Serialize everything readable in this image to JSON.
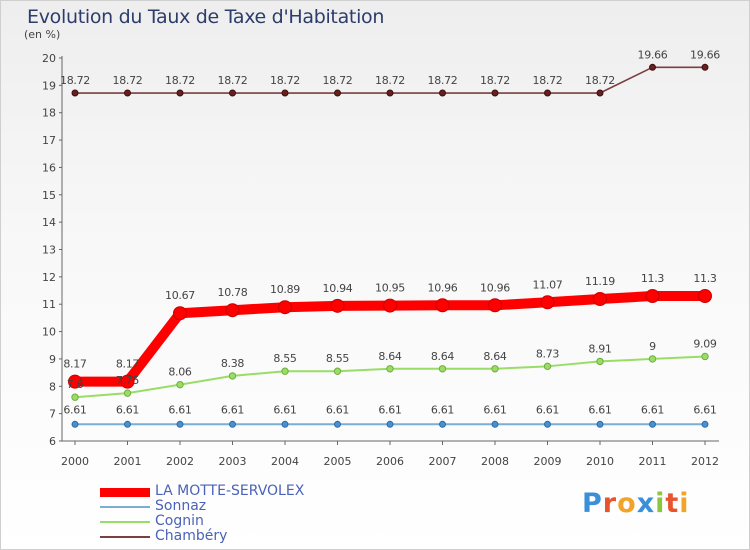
{
  "title": "Evolution du Taux de Taxe d'Habitation",
  "unit": "(en %)",
  "logo": {
    "text": "Proxiti",
    "letters": [
      {
        "ch": "P",
        "color": "#3a8fd8"
      },
      {
        "ch": "r",
        "color": "#e8542b"
      },
      {
        "ch": "o",
        "color": "#f2a32a"
      },
      {
        "ch": "x",
        "color": "#3a8fd8"
      },
      {
        "ch": "i",
        "color": "#8cc63e"
      },
      {
        "ch": "t",
        "color": "#e8542b"
      },
      {
        "ch": "i",
        "color": "#f2a32a"
      }
    ]
  },
  "chart_data": {
    "type": "line",
    "title": "Evolution du Taux de Taxe d'Habitation",
    "ylabel": "(en %)",
    "xlabel": "",
    "ylim": [
      6,
      20
    ],
    "yticks": [
      6,
      7,
      8,
      9,
      10,
      11,
      12,
      13,
      14,
      15,
      16,
      17,
      18,
      19,
      20
    ],
    "categories": [
      "2000",
      "2001",
      "2002",
      "2003",
      "2004",
      "2005",
      "2006",
      "2007",
      "2008",
      "2009",
      "2010",
      "2011",
      "2012"
    ],
    "grid": false,
    "legend_position": "bottom-left",
    "series": [
      {
        "name": "LA MOTTE-SERVOLEX",
        "color": "#ff0000",
        "labels": [
          "8.17",
          "8.17",
          "10.67",
          "10.78",
          "10.89",
          "10.94",
          "10.95",
          "10.96",
          "10.96",
          "11.07",
          "11.19",
          "11.3",
          "11.3"
        ],
        "values": [
          8.17,
          8.17,
          10.67,
          10.78,
          10.89,
          10.94,
          10.95,
          10.96,
          10.96,
          11.07,
          11.19,
          11.3,
          11.3
        ]
      },
      {
        "name": "Sonnaz",
        "color": "#7aaed6",
        "labels": [
          "6.61",
          "6.61",
          "6.61",
          "6.61",
          "6.61",
          "6.61",
          "6.61",
          "6.61",
          "6.61",
          "6.61",
          "6.61",
          "6.61",
          "6.61"
        ],
        "values": [
          6.61,
          6.61,
          6.61,
          6.61,
          6.61,
          6.61,
          6.61,
          6.61,
          6.61,
          6.61,
          6.61,
          6.61,
          6.61
        ]
      },
      {
        "name": "Cognin",
        "color": "#99dd66",
        "labels": [
          "7.6",
          "7.75",
          "8.06",
          "8.38",
          "8.55",
          "8.55",
          "8.64",
          "8.64",
          "8.64",
          "8.73",
          "8.91",
          "9",
          "9.09"
        ],
        "values": [
          7.6,
          7.75,
          8.06,
          8.38,
          8.55,
          8.55,
          8.64,
          8.64,
          8.64,
          8.73,
          8.91,
          9,
          9.09
        ]
      },
      {
        "name": "Chambéry",
        "color": "#7a3f3f",
        "labels": [
          "18.72",
          "18.72",
          "18.72",
          "18.72",
          "18.72",
          "18.72",
          "18.72",
          "18.72",
          "18.72",
          "18.72",
          "18.72",
          "19.66",
          "19.66"
        ],
        "values": [
          18.72,
          18.72,
          18.72,
          18.72,
          18.72,
          18.72,
          18.72,
          18.72,
          18.72,
          18.72,
          18.72,
          19.66,
          19.66
        ]
      }
    ]
  }
}
